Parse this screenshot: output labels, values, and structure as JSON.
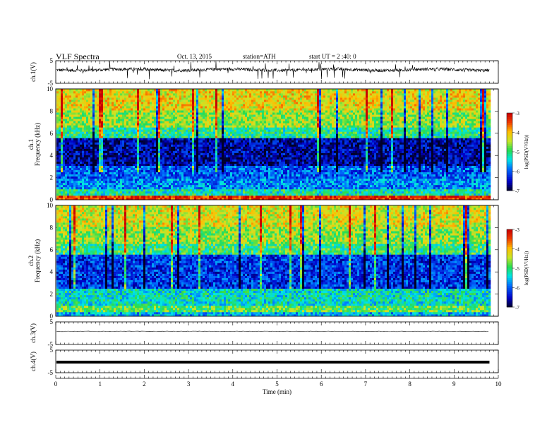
{
  "header": {
    "title": "VLF Spectra",
    "date": "Oct. 13, 2015",
    "station": "station=ATH",
    "start": "start UT = 2 :40: 0"
  },
  "chart_data": [
    {
      "type": "line",
      "panel": "ch1-waveform",
      "ylabel": "ch.1(V)",
      "ylim": [
        -5,
        5
      ],
      "yticks": [
        "5",
        "-5"
      ],
      "x_range": [
        0,
        9.8
      ],
      "baseline": 1.0,
      "note_values": "noisy signal around +1 V with spikes up to 5 V and down to -5 V"
    },
    {
      "type": "heatmap",
      "panel": "ch1-spectrogram",
      "ylabel": "ch.1\nFrequency (kHz)",
      "ylim": [
        0,
        10
      ],
      "yticks": [
        "0",
        "2",
        "4",
        "6",
        "8",
        "10"
      ],
      "x_range": [
        0,
        9.8
      ],
      "colorbar": {
        "label": "log(PSD(V²/Hz))",
        "range": [
          -7,
          -3
        ],
        "ticks": [
          "-3",
          "-4",
          "-5",
          "-6",
          "-7"
        ]
      },
      "profile": [
        {
          "f": [
            0,
            0.3
          ],
          "level": -3.3
        },
        {
          "f": [
            0.3,
            1.0
          ],
          "level": -5.2
        },
        {
          "f": [
            1.0,
            2.0
          ],
          "level": -5.8
        },
        {
          "f": [
            2.0,
            3.0
          ],
          "level": -6.0
        },
        {
          "f": [
            3.0,
            5.5
          ],
          "level": -6.6
        },
        {
          "f": [
            5.5,
            6.5
          ],
          "level": -5.1
        },
        {
          "f": [
            6.5,
            8.0
          ],
          "level": -4.6
        },
        {
          "f": [
            8.0,
            10.0
          ],
          "level": -4.2
        }
      ]
    },
    {
      "type": "heatmap",
      "panel": "ch2-spectrogram",
      "ylabel": "ch.2\nFrequency (kHz)",
      "ylim": [
        0,
        10
      ],
      "yticks": [
        "0",
        "2",
        "4",
        "6",
        "8",
        "10"
      ],
      "x_range": [
        0,
        9.8
      ],
      "colorbar": {
        "label": "log(PSD(V²/Hz))",
        "range": [
          -7,
          -3
        ],
        "ticks": [
          "-3",
          "-4",
          "-5",
          "-6",
          "-7"
        ]
      },
      "profile": [
        {
          "f": [
            0,
            0.3
          ],
          "level": -5.6
        },
        {
          "f": [
            0.3,
            1.0
          ],
          "level": -4.8
        },
        {
          "f": [
            1.0,
            2.5
          ],
          "level": -5.3
        },
        {
          "f": [
            2.5,
            5.5
          ],
          "level": -6.2
        },
        {
          "f": [
            5.5,
            6.5
          ],
          "level": -5.0
        },
        {
          "f": [
            6.5,
            8.0
          ],
          "level": -4.6
        },
        {
          "f": [
            8.0,
            10.0
          ],
          "level": -4.3
        }
      ]
    },
    {
      "type": "line",
      "panel": "ch3-waveform",
      "ylabel": "ch.3(V)",
      "ylim": [
        -5,
        5
      ],
      "yticks": [
        "5",
        "-5"
      ],
      "x_range": [
        0,
        9.8
      ],
      "baseline": 0.8
    },
    {
      "type": "line",
      "panel": "ch4-waveform",
      "ylabel": "ch.4(V)",
      "ylim": [
        -5,
        5
      ],
      "yticks": [
        "5",
        "-5"
      ],
      "x_range": [
        0,
        9.8
      ],
      "baseline": -0.3
    }
  ],
  "x_axis": {
    "xlabel": "Time (min)",
    "xlim": [
      0,
      10
    ],
    "ticks": [
      "0",
      "1",
      "2",
      "3",
      "4",
      "5",
      "6",
      "7",
      "8",
      "9",
      "10"
    ]
  }
}
